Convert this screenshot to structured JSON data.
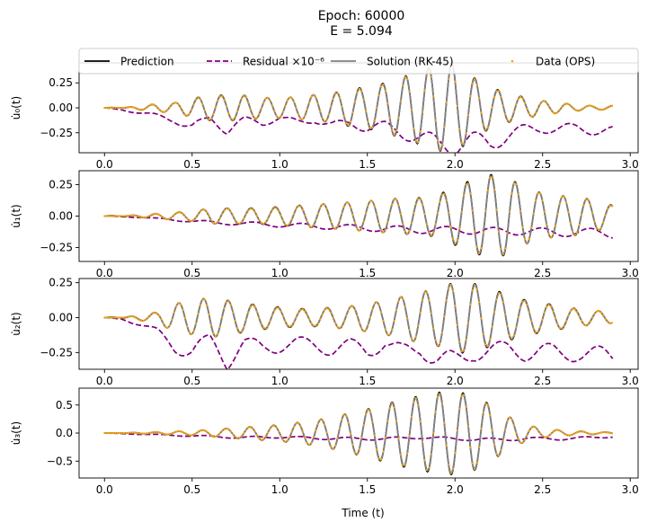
{
  "title_line1": "Epoch: 60000",
  "title_line2": "E = 5.094",
  "xlabel": "Time (t)",
  "legend": {
    "placement": "top-center",
    "entries": [
      {
        "label": "Prediction",
        "color": "#000000",
        "style": "solid"
      },
      {
        "label": "Residual ×10⁻⁶",
        "color": "#800080",
        "style": "dashed"
      },
      {
        "label": "Solution (RK-45)",
        "color": "#808080",
        "style": "solid"
      },
      {
        "label": "Data (OPS)",
        "color": "#ffa500",
        "style": "dots"
      }
    ]
  },
  "chart_data": [
    {
      "type": "line",
      "ylabel": "u̇₀(t)",
      "xlim": [
        -0.145,
        3.045
      ],
      "ylim": [
        -0.45,
        0.45
      ],
      "xticks": [
        0.0,
        0.5,
        1.0,
        1.5,
        2.0,
        2.5,
        3.0
      ],
      "yticks": [
        -0.25,
        0.0,
        0.25
      ],
      "xtick_labels_shown": false,
      "envelope": {
        "t": [
          0.0,
          0.1,
          0.2,
          0.3,
          0.4,
          0.5,
          0.6,
          0.7,
          0.8,
          0.9,
          1.0,
          1.1,
          1.2,
          1.3,
          1.4,
          1.5,
          1.6,
          1.7,
          1.8,
          1.9,
          2.0,
          2.1,
          2.2,
          2.3,
          2.4,
          2.5,
          2.6,
          2.7,
          2.8,
          2.9
        ],
        "amp": [
          0.0,
          0.0,
          0.02,
          0.04,
          0.05,
          0.09,
          0.12,
          0.12,
          0.12,
          0.1,
          0.1,
          0.11,
          0.13,
          0.14,
          0.18,
          0.2,
          0.24,
          0.3,
          0.36,
          0.42,
          0.44,
          0.3,
          0.2,
          0.14,
          0.1,
          0.07,
          0.05,
          0.03,
          0.02,
          0.02
        ]
      },
      "residual": {
        "t": [
          0.0,
          0.1,
          0.2,
          0.3,
          0.4,
          0.5,
          0.6,
          0.7,
          0.8,
          0.9,
          1.0,
          1.1,
          1.2,
          1.3,
          1.4,
          1.5,
          1.6,
          1.7,
          1.8,
          1.9,
          2.0,
          2.1,
          2.2,
          2.3,
          2.4,
          2.5,
          2.6,
          2.7,
          2.8,
          2.9
        ],
        "value": [
          0.0,
          -0.02,
          -0.05,
          -0.08,
          -0.12,
          -0.2,
          -0.1,
          -0.22,
          -0.12,
          -0.15,
          -0.1,
          -0.15,
          -0.12,
          -0.18,
          -0.15,
          -0.2,
          -0.18,
          -0.25,
          -0.3,
          -0.35,
          -0.38,
          -0.32,
          -0.35,
          -0.28,
          -0.22,
          -0.2,
          -0.22,
          -0.2,
          -0.22,
          -0.25
        ]
      }
    },
    {
      "type": "line",
      "ylabel": "u̇₁(t)",
      "xlim": [
        -0.145,
        3.045
      ],
      "ylim": [
        -0.36,
        0.36
      ],
      "xticks": [
        0.0,
        0.5,
        1.0,
        1.5,
        2.0,
        2.5,
        3.0
      ],
      "yticks": [
        -0.25,
        0.0,
        0.25
      ],
      "xtick_labels_shown": true,
      "envelope": {
        "t": [
          0.0,
          0.1,
          0.2,
          0.3,
          0.4,
          0.5,
          0.6,
          0.7,
          0.8,
          0.9,
          1.0,
          1.1,
          1.2,
          1.3,
          1.4,
          1.5,
          1.6,
          1.7,
          1.8,
          1.9,
          2.0,
          2.1,
          2.2,
          2.3,
          2.4,
          2.5,
          2.6,
          2.7,
          2.8,
          2.9
        ],
        "amp": [
          0.0,
          0.0,
          0.01,
          0.02,
          0.03,
          0.04,
          0.06,
          0.06,
          0.06,
          0.06,
          0.07,
          0.08,
          0.09,
          0.1,
          0.11,
          0.12,
          0.13,
          0.14,
          0.14,
          0.16,
          0.22,
          0.28,
          0.32,
          0.3,
          0.22,
          0.18,
          0.16,
          0.15,
          0.12,
          0.08
        ]
      },
      "residual": {
        "t": [
          0.0,
          0.2,
          0.4,
          0.6,
          0.8,
          1.0,
          1.2,
          1.4,
          1.6,
          1.8,
          2.0,
          2.2,
          2.4,
          2.6,
          2.8,
          2.9
        ],
        "value": [
          0.0,
          -0.01,
          -0.03,
          -0.05,
          -0.06,
          -0.07,
          -0.08,
          -0.09,
          -0.1,
          -0.11,
          -0.11,
          -0.12,
          -0.12,
          -0.13,
          -0.13,
          -0.14
        ]
      }
    },
    {
      "type": "line",
      "ylabel": "u̇₂(t)",
      "xlim": [
        -0.145,
        3.045
      ],
      "ylim": [
        -0.37,
        0.28
      ],
      "xticks": [
        0.0,
        0.5,
        1.0,
        1.5,
        2.0,
        2.5,
        3.0
      ],
      "yticks": [
        -0.25,
        0.0,
        0.25
      ],
      "xtick_labels_shown": true,
      "envelope": {
        "t": [
          0.0,
          0.1,
          0.2,
          0.3,
          0.4,
          0.5,
          0.6,
          0.7,
          0.8,
          0.9,
          1.0,
          1.1,
          1.2,
          1.3,
          1.4,
          1.5,
          1.6,
          1.7,
          1.8,
          1.9,
          2.0,
          2.1,
          2.2,
          2.3,
          2.4,
          2.5,
          2.6,
          2.7,
          2.8,
          2.9
        ],
        "amp": [
          0.0,
          0.0,
          0.02,
          0.04,
          0.1,
          0.12,
          0.14,
          0.12,
          0.1,
          0.08,
          0.07,
          0.06,
          0.06,
          0.07,
          0.08,
          0.1,
          0.12,
          0.15,
          0.18,
          0.2,
          0.25,
          0.24,
          0.2,
          0.16,
          0.12,
          0.1,
          0.08,
          0.06,
          0.05,
          0.04
        ]
      },
      "residual": {
        "t": [
          0.0,
          0.1,
          0.2,
          0.3,
          0.4,
          0.5,
          0.6,
          0.7,
          0.8,
          0.9,
          1.0,
          1.1,
          1.2,
          1.3,
          1.4,
          1.5,
          1.6,
          1.7,
          1.8,
          1.9,
          2.0,
          2.1,
          2.2,
          2.3,
          2.4,
          2.5,
          2.6,
          2.7,
          2.8,
          2.9
        ],
        "value": [
          0.0,
          -0.01,
          -0.05,
          -0.1,
          -0.2,
          -0.25,
          -0.15,
          -0.3,
          -0.18,
          -0.22,
          -0.2,
          -0.18,
          -0.2,
          -0.22,
          -0.2,
          -0.24,
          -0.18,
          -0.25,
          -0.22,
          -0.3,
          -0.32,
          -0.25,
          -0.24,
          -0.22,
          -0.25,
          -0.24,
          -0.26,
          -0.25,
          -0.27,
          -0.28
        ]
      }
    },
    {
      "type": "line",
      "ylabel": "u̇₃(t)",
      "xlim": [
        -0.145,
        3.045
      ],
      "ylim": [
        -0.8,
        0.8
      ],
      "xticks": [
        0.0,
        0.5,
        1.0,
        1.5,
        2.0,
        2.5,
        3.0
      ],
      "yticks": [
        -0.5,
        0.0,
        0.5
      ],
      "xtick_labels_shown": true,
      "envelope": {
        "t": [
          0.0,
          0.1,
          0.2,
          0.3,
          0.4,
          0.5,
          0.6,
          0.7,
          0.8,
          0.9,
          1.0,
          1.1,
          1.2,
          1.3,
          1.4,
          1.5,
          1.6,
          1.7,
          1.8,
          1.9,
          2.0,
          2.1,
          2.2,
          2.3,
          2.4,
          2.5,
          2.6,
          2.7,
          2.8,
          2.9
        ],
        "amp": [
          0.0,
          0.0,
          0.01,
          0.02,
          0.03,
          0.04,
          0.06,
          0.08,
          0.1,
          0.12,
          0.14,
          0.18,
          0.22,
          0.28,
          0.35,
          0.42,
          0.5,
          0.58,
          0.64,
          0.7,
          0.72,
          0.66,
          0.5,
          0.3,
          0.15,
          0.08,
          0.05,
          0.03,
          0.02,
          0.01
        ]
      },
      "residual": {
        "t": [
          0.0,
          0.2,
          0.4,
          0.6,
          0.8,
          1.0,
          1.2,
          1.4,
          1.6,
          1.8,
          2.0,
          2.2,
          2.4,
          2.6,
          2.8,
          2.9
        ],
        "value": [
          0.0,
          -0.02,
          -0.04,
          -0.06,
          -0.08,
          -0.07,
          -0.09,
          -0.1,
          -0.1,
          -0.08,
          -0.1,
          -0.12,
          -0.1,
          -0.1,
          -0.08,
          -0.06
        ]
      }
    }
  ]
}
